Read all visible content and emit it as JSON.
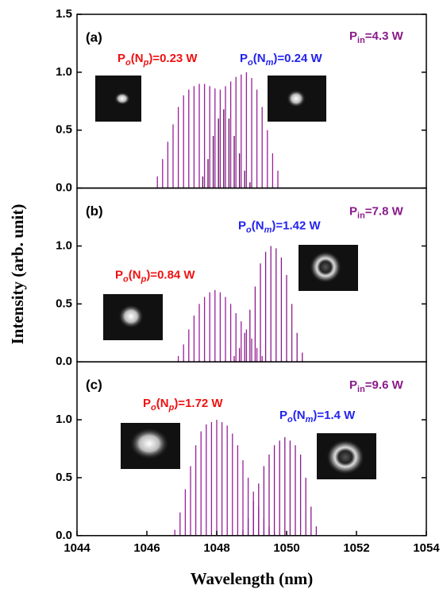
{
  "figure": {
    "xlabel": "Wavelength (nm)",
    "ylabel": "Intensity (arb. unit)"
  },
  "chart_data": [
    {
      "type": "stick",
      "panel_label": "(a)",
      "xlim": [
        1044,
        1054
      ],
      "ylim": [
        0,
        1.5
      ],
      "yticks": [
        {
          "value": 0,
          "label": "0.0"
        },
        {
          "value": 0.5,
          "label": "0.5"
        },
        {
          "value": 1,
          "label": "1.0"
        },
        {
          "value": 1.5,
          "label": "1.5"
        }
      ],
      "annotations": {
        "np": [
          "P",
          "o",
          "(N",
          "p",
          ")=0.23 W"
        ],
        "nm": [
          "P",
          "o",
          "(N",
          "m",
          ")=0.24 W"
        ],
        "pin": [
          "P",
          "in",
          "=4.3 W"
        ],
        "np_color": "#ee1111",
        "nm_color": "#2222ee",
        "pin_color": "#8a1a8a"
      },
      "series": [
        {
          "color": "#9a1f9a",
          "x": [
            1046.3,
            1046.45,
            1046.6,
            1046.75,
            1046.9,
            1047.05,
            1047.2,
            1047.35,
            1047.5,
            1047.65,
            1047.8,
            1047.95,
            1048.1,
            1048.25,
            1048.4,
            1048.55,
            1048.7,
            1048.85,
            1049.0,
            1049.15,
            1049.3,
            1049.45,
            1049.6,
            1049.75
          ],
          "values": [
            0.1,
            0.25,
            0.4,
            0.55,
            0.7,
            0.8,
            0.85,
            0.88,
            0.9,
            0.9,
            0.88,
            0.86,
            0.85,
            0.88,
            0.92,
            0.96,
            0.98,
            1.0,
            0.95,
            0.85,
            0.7,
            0.5,
            0.3,
            0.15
          ]
        },
        {
          "color": "#5e0a5e",
          "x": [
            1047.6,
            1047.75,
            1047.9,
            1048.05,
            1048.2,
            1048.35,
            1048.5,
            1048.65,
            1048.8,
            1048.95
          ],
          "values": [
            0.1,
            0.25,
            0.45,
            0.6,
            0.68,
            0.6,
            0.45,
            0.3,
            0.15,
            0.05
          ]
        }
      ]
    },
    {
      "type": "stick",
      "panel_label": "(b)",
      "xlim": [
        1044,
        1054
      ],
      "ylim": [
        0,
        1.5
      ],
      "yticks": [
        {
          "value": 0,
          "label": "0.0"
        },
        {
          "value": 0.5,
          "label": "0.5"
        },
        {
          "value": 1,
          "label": "1.0"
        }
      ],
      "annotations": {
        "np": [
          "P",
          "o",
          "(N",
          "p",
          ")=0.84 W"
        ],
        "nm": [
          "P",
          "o",
          "(N",
          "m",
          ")=1.42 W"
        ],
        "pin": [
          "P",
          "in",
          "=7.8 W"
        ],
        "np_color": "#ee1111",
        "nm_color": "#2222ee",
        "pin_color": "#8a1a8a"
      },
      "series": [
        {
          "color": "#9a1f9a",
          "x": [
            1046.9,
            1047.05,
            1047.2,
            1047.35,
            1047.5,
            1047.65,
            1047.8,
            1047.95,
            1048.1,
            1048.25,
            1048.4,
            1048.55,
            1048.7,
            1048.85,
            1049.0,
            1049.15,
            1049.3
          ],
          "values": [
            0.05,
            0.15,
            0.28,
            0.4,
            0.5,
            0.56,
            0.6,
            0.62,
            0.6,
            0.56,
            0.5,
            0.42,
            0.35,
            0.28,
            0.2,
            0.12,
            0.05
          ]
        },
        {
          "color": "#8a1a8a",
          "x": [
            1048.5,
            1048.65,
            1048.8,
            1048.95,
            1049.1,
            1049.25,
            1049.4,
            1049.55,
            1049.7,
            1049.85,
            1050.0,
            1050.15,
            1050.3,
            1050.45
          ],
          "values": [
            0.05,
            0.12,
            0.25,
            0.45,
            0.65,
            0.85,
            0.95,
            1.0,
            0.98,
            0.9,
            0.75,
            0.5,
            0.25,
            0.08
          ]
        }
      ]
    },
    {
      "type": "stick",
      "panel_label": "(c)",
      "xlim": [
        1044,
        1054
      ],
      "ylim": [
        0,
        1.5
      ],
      "yticks": [
        {
          "value": 0,
          "label": "0.0"
        },
        {
          "value": 0.5,
          "label": "0.5"
        },
        {
          "value": 1,
          "label": "1.0"
        }
      ],
      "xticks": [
        1044,
        1046,
        1048,
        1050,
        1052,
        1054
      ],
      "annotations": {
        "np": [
          "P",
          "o",
          "(N",
          "p",
          ")=1.72 W"
        ],
        "nm": [
          "P",
          "o",
          "(N",
          "m",
          ")=1.4 W"
        ],
        "pin": [
          "P",
          "in",
          "=9.6 W"
        ],
        "np_color": "#ee1111",
        "nm_color": "#2222ee",
        "pin_color": "#8a1a8a"
      },
      "series": [
        {
          "color": "#9a1f9a",
          "x": [
            1046.8,
            1046.95,
            1047.1,
            1047.25,
            1047.4,
            1047.55,
            1047.7,
            1047.85,
            1048.0,
            1048.15,
            1048.3,
            1048.45,
            1048.6,
            1048.75,
            1048.9,
            1049.05,
            1049.2,
            1049.35,
            1049.5,
            1049.65
          ],
          "values": [
            0.05,
            0.2,
            0.4,
            0.6,
            0.78,
            0.9,
            0.96,
            0.98,
            1.0,
            0.98,
            0.95,
            0.88,
            0.78,
            0.65,
            0.5,
            0.38,
            0.25,
            0.15,
            0.08,
            0.03
          ]
        },
        {
          "color": "#8a1a8a",
          "x": [
            1048.75,
            1048.9,
            1049.05,
            1049.2,
            1049.35,
            1049.5,
            1049.65,
            1049.8,
            1049.95,
            1050.1,
            1050.25,
            1050.4,
            1050.55,
            1050.7,
            1050.85
          ],
          "values": [
            0.05,
            0.15,
            0.3,
            0.45,
            0.6,
            0.7,
            0.78,
            0.82,
            0.85,
            0.82,
            0.78,
            0.7,
            0.5,
            0.25,
            0.08
          ]
        }
      ]
    }
  ]
}
